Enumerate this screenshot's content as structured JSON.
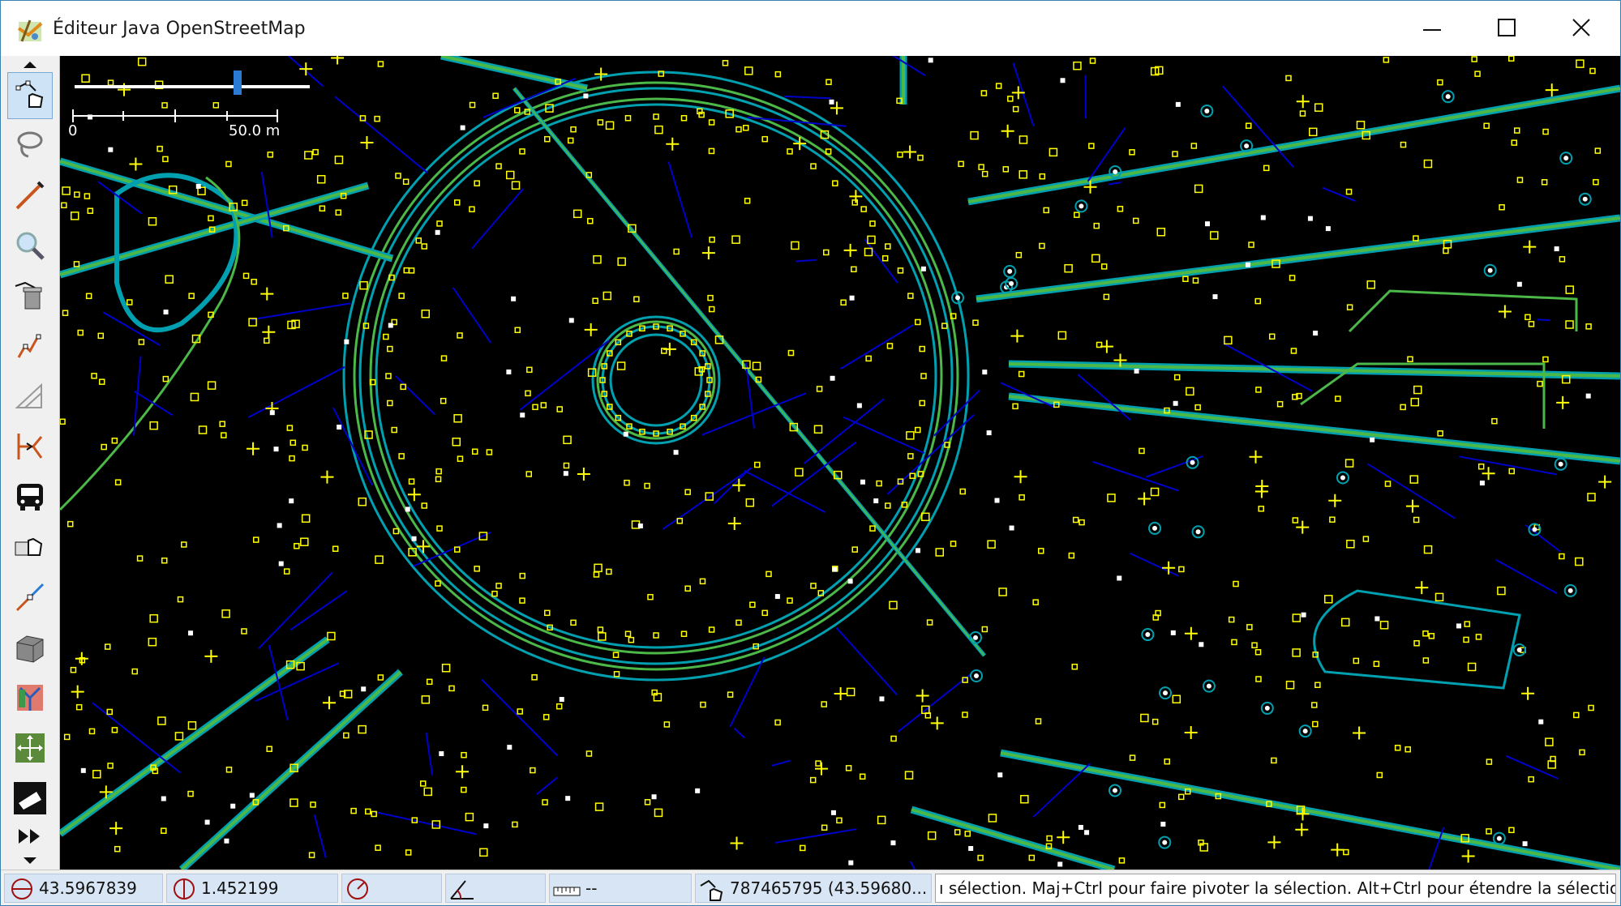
{
  "window": {
    "title": "Éditeur Java OpenStreetMap",
    "minimize_icon": "minimize-icon",
    "maximize_icon": "maximize-icon",
    "close_icon": "close-icon"
  },
  "toolbar": {
    "tools": [
      {
        "name": "select-tool",
        "icon": "select-hand-icon",
        "active": true
      },
      {
        "name": "lasso-tool",
        "icon": "lasso-icon"
      },
      {
        "name": "draw-tool",
        "icon": "draw-pen-icon"
      },
      {
        "name": "zoom-tool",
        "icon": "magnifier-icon"
      },
      {
        "name": "delete-tool",
        "icon": "delete-trash-icon"
      },
      {
        "name": "improve-way-tool",
        "icon": "improve-way-icon"
      },
      {
        "name": "parallel-way-tool",
        "icon": "parallel-icon"
      },
      {
        "name": "extrude-tool",
        "icon": "extrude-icon"
      },
      {
        "name": "public-transport-tool",
        "icon": "bus-icon"
      },
      {
        "name": "map-paint-tool",
        "icon": "select-hand-map-icon"
      },
      {
        "name": "way-split-tool",
        "icon": "split-way-icon"
      },
      {
        "name": "building-tool",
        "icon": "building-icon"
      },
      {
        "name": "relation-editor-tool",
        "icon": "relation-icon"
      },
      {
        "name": "move-tool",
        "icon": "move-arrows-icon"
      },
      {
        "name": "eraser-tool",
        "icon": "eraser-icon"
      },
      {
        "name": "more-tools",
        "icon": "fast-forward-icon"
      }
    ]
  },
  "map": {
    "scale_zero": "0",
    "scale_label": "50.0 m",
    "zoom_level_fraction": 0.7,
    "colors": {
      "background": "#000000",
      "way": "#0000cc",
      "road_outline": "#00a0b0",
      "road_inner": "#4cb848",
      "node": "#ffff00",
      "tagged_node": "#ffffff"
    }
  },
  "statusbar": {
    "latitude": "43.5967839",
    "longitude": "1.452199",
    "heading": "",
    "angle": "",
    "distance": "--",
    "selected_object": "787465795 (43.59680...",
    "help_text": "ı sélection. Maj+Ctrl pour faire pivoter la sélection. Alt+Ctrl pour étendre la sélection."
  }
}
